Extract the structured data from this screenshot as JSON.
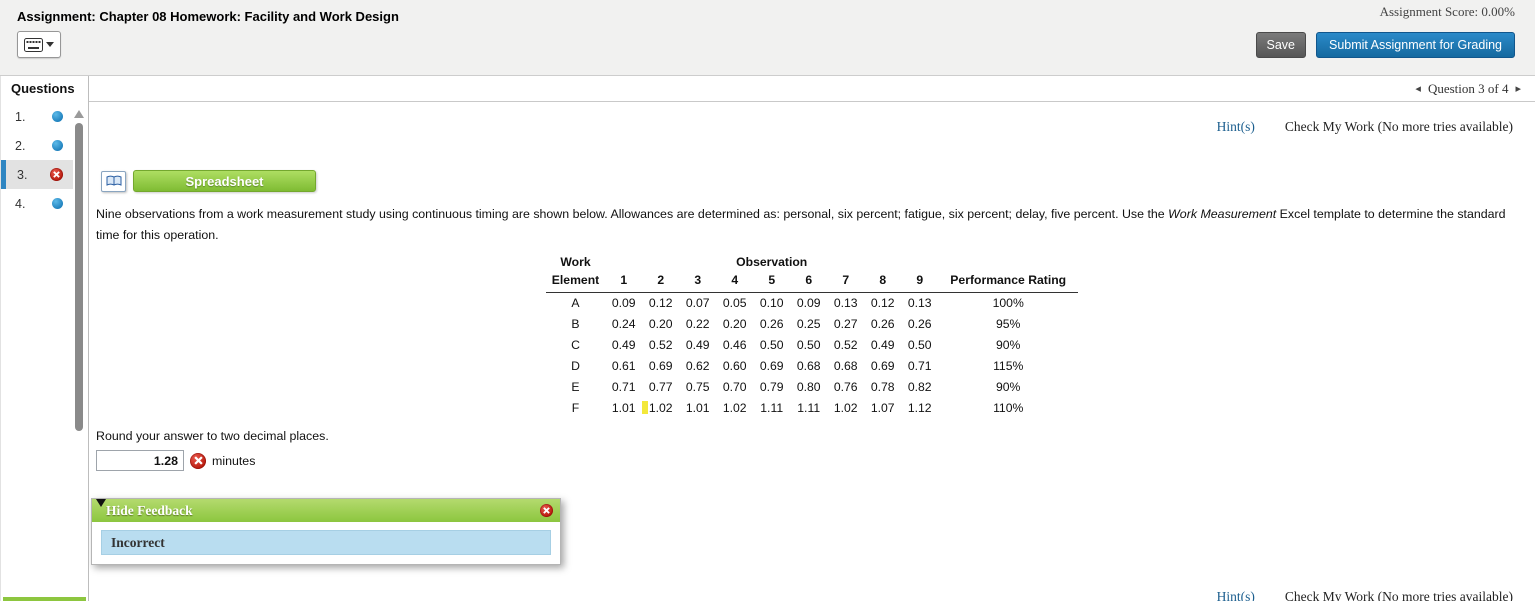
{
  "header": {
    "title": "Assignment: Chapter 08 Homework: Facility and Work Design",
    "score_label": "Assignment Score: 0.00%",
    "save_label": "Save",
    "submit_label": "Submit Assignment for Grading"
  },
  "sidebar": {
    "title": "Questions",
    "items": [
      {
        "num": "1.",
        "status": "answered",
        "active": false
      },
      {
        "num": "2.",
        "status": "answered",
        "active": false
      },
      {
        "num": "3.",
        "status": "incorrect",
        "active": true
      },
      {
        "num": "4.",
        "status": "answered",
        "active": false
      }
    ]
  },
  "question_nav": {
    "prev_icon": "◂",
    "label": "Question 3 of 4",
    "next_icon": "▸"
  },
  "question": {
    "hints_label": "Hint(s)",
    "check_label": "Check My Work (No more tries available)",
    "spreadsheet_label": "Spreadsheet",
    "prompt_part1": "Nine observations from a work measurement study using continuous timing are shown below. Allowances are determined as: personal, six percent; fatigue, six percent; delay, five percent. Use the ",
    "prompt_italic": "Work Measurement",
    "prompt_part2": " Excel template to determine the standard time for this operation.",
    "round_note": "Round your answer to two decimal places.",
    "answer_value": "1.28",
    "answer_unit": "minutes"
  },
  "table": {
    "group_headers": {
      "left": "Work",
      "mid": "Observation"
    },
    "col_headers": [
      "Element",
      "1",
      "2",
      "3",
      "4",
      "5",
      "6",
      "7",
      "8",
      "9",
      "Performance Rating"
    ],
    "rows": [
      {
        "element": "A",
        "obs": [
          "0.09",
          "0.12",
          "0.07",
          "0.05",
          "0.10",
          "0.09",
          "0.13",
          "0.12",
          "0.13"
        ],
        "rating": "100%"
      },
      {
        "element": "B",
        "obs": [
          "0.24",
          "0.20",
          "0.22",
          "0.20",
          "0.26",
          "0.25",
          "0.27",
          "0.26",
          "0.26"
        ],
        "rating": "95%"
      },
      {
        "element": "C",
        "obs": [
          "0.49",
          "0.52",
          "0.49",
          "0.46",
          "0.50",
          "0.50",
          "0.52",
          "0.49",
          "0.50"
        ],
        "rating": "90%"
      },
      {
        "element": "D",
        "obs": [
          "0.61",
          "0.69",
          "0.62",
          "0.60",
          "0.69",
          "0.68",
          "0.68",
          "0.69",
          "0.71"
        ],
        "rating": "115%"
      },
      {
        "element": "E",
        "obs": [
          "0.71",
          "0.77",
          "0.75",
          "0.70",
          "0.79",
          "0.80",
          "0.76",
          "0.78",
          "0.82"
        ],
        "rating": "90%"
      },
      {
        "element": "F",
        "obs": [
          "1.01",
          "1.02",
          "1.01",
          "1.02",
          "1.11",
          "1.11",
          "1.02",
          "1.07",
          "1.12"
        ],
        "rating": "110%"
      }
    ],
    "cursor": {
      "row": 5,
      "col": 1
    }
  },
  "feedback": {
    "title": "Hide Feedback",
    "status": "Incorrect"
  },
  "next_question": {
    "hints_label": "Hint(s)",
    "check_label": "Check My Work (No more tries available)"
  },
  "colors": {
    "brand_green": "#8dc63f",
    "submit_blue": "#1777bb",
    "link_blue": "#1b5e8e",
    "incorrect_red": "#b5170a",
    "answered_blue": "#2d9cdb",
    "active_question_bar": "#2f86c2",
    "feedback_status_bg": "#b9ddf0",
    "cursor_yellow": "#f3e83b"
  }
}
